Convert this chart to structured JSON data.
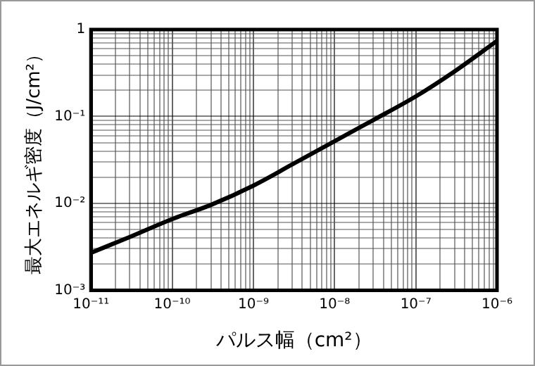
{
  "chart_data": {
    "type": "line",
    "xlabel": "パルス幅（cm²）",
    "ylabel": "最大エネルギ密度（J/cm²）",
    "x": [
      1e-11,
      3e-11,
      1e-10,
      3e-10,
      1e-09,
      3e-09,
      1e-08,
      3e-08,
      1e-07,
      3e-07,
      1e-06
    ],
    "series": [
      {
        "color": "#000000",
        "values": [
          0.0027,
          0.0041,
          0.0066,
          0.0096,
          0.016,
          0.028,
          0.052,
          0.091,
          0.17,
          0.33,
          0.74
        ]
      }
    ],
    "log": "xy",
    "xlim": [
      1e-11,
      1e-06
    ],
    "ylim": [
      0.001,
      1
    ],
    "xticks": [
      {
        "value": 1e-11,
        "label": "10⁻¹¹"
      },
      {
        "value": 2e-11,
        "label": null
      },
      {
        "value": 3e-11,
        "label": null
      },
      {
        "value": 4e-11,
        "label": null
      },
      {
        "value": 5e-11,
        "label": null
      },
      {
        "value": 6e-11,
        "label": null
      },
      {
        "value": 7e-11,
        "label": null
      },
      {
        "value": 8e-11,
        "label": null
      },
      {
        "value": 9e-11,
        "label": null
      },
      {
        "value": 1e-10,
        "label": "10⁻¹⁰"
      },
      {
        "value": 2e-10,
        "label": null
      },
      {
        "value": 3e-10,
        "label": null
      },
      {
        "value": 4e-10,
        "label": null
      },
      {
        "value": 5e-10,
        "label": null
      },
      {
        "value": 6e-10,
        "label": null
      },
      {
        "value": 7e-10,
        "label": null
      },
      {
        "value": 8e-10,
        "label": null
      },
      {
        "value": 9e-10,
        "label": null
      },
      {
        "value": 1e-09,
        "label": "10⁻⁹"
      },
      {
        "value": 2e-09,
        "label": null
      },
      {
        "value": 3e-09,
        "label": null
      },
      {
        "value": 4e-09,
        "label": null
      },
      {
        "value": 5e-09,
        "label": null
      },
      {
        "value": 6e-09,
        "label": null
      },
      {
        "value": 7e-09,
        "label": null
      },
      {
        "value": 8e-09,
        "label": null
      },
      {
        "value": 9e-09,
        "label": null
      },
      {
        "value": 1e-08,
        "label": "10⁻⁸"
      },
      {
        "value": 2e-08,
        "label": null
      },
      {
        "value": 3e-08,
        "label": null
      },
      {
        "value": 4e-08,
        "label": null
      },
      {
        "value": 5e-08,
        "label": null
      },
      {
        "value": 6e-08,
        "label": null
      },
      {
        "value": 7e-08,
        "label": null
      },
      {
        "value": 8e-08,
        "label": null
      },
      {
        "value": 9e-08,
        "label": null
      },
      {
        "value": 1e-07,
        "label": "10⁻⁷"
      },
      {
        "value": 2e-07,
        "label": null
      },
      {
        "value": 3e-07,
        "label": null
      },
      {
        "value": 4e-07,
        "label": null
      },
      {
        "value": 5e-07,
        "label": null
      },
      {
        "value": 6e-07,
        "label": null
      },
      {
        "value": 7e-07,
        "label": null
      },
      {
        "value": 8e-07,
        "label": null
      },
      {
        "value": 9e-07,
        "label": null
      },
      {
        "value": 1e-06,
        "label": "10⁻⁶"
      }
    ],
    "yticks": [
      {
        "value": 0.001,
        "label": "10⁻³"
      },
      {
        "value": 0.002,
        "label": null
      },
      {
        "value": 0.003,
        "label": null
      },
      {
        "value": 0.004,
        "label": null
      },
      {
        "value": 0.005,
        "label": null
      },
      {
        "value": 0.006,
        "label": null
      },
      {
        "value": 0.007,
        "label": null
      },
      {
        "value": 0.008,
        "label": null
      },
      {
        "value": 0.009,
        "label": null
      },
      {
        "value": 0.01,
        "label": "10⁻²"
      },
      {
        "value": 0.02,
        "label": null
      },
      {
        "value": 0.03,
        "label": null
      },
      {
        "value": 0.04,
        "label": null
      },
      {
        "value": 0.05,
        "label": null
      },
      {
        "value": 0.06,
        "label": null
      },
      {
        "value": 0.07,
        "label": null
      },
      {
        "value": 0.08,
        "label": null
      },
      {
        "value": 0.09,
        "label": null
      },
      {
        "value": 0.1,
        "label": "10⁻¹"
      },
      {
        "value": 0.2,
        "label": null
      },
      {
        "value": 0.3,
        "label": null
      },
      {
        "value": 0.4,
        "label": null
      },
      {
        "value": 0.5,
        "label": null
      },
      {
        "value": 0.6,
        "label": null
      },
      {
        "value": 0.7,
        "label": null
      },
      {
        "value": 0.8,
        "label": null
      },
      {
        "value": 0.9,
        "label": null
      },
      {
        "value": 1,
        "label": "1"
      }
    ],
    "grid": true,
    "legend": false,
    "marker": "none",
    "line_style": "solid"
  }
}
